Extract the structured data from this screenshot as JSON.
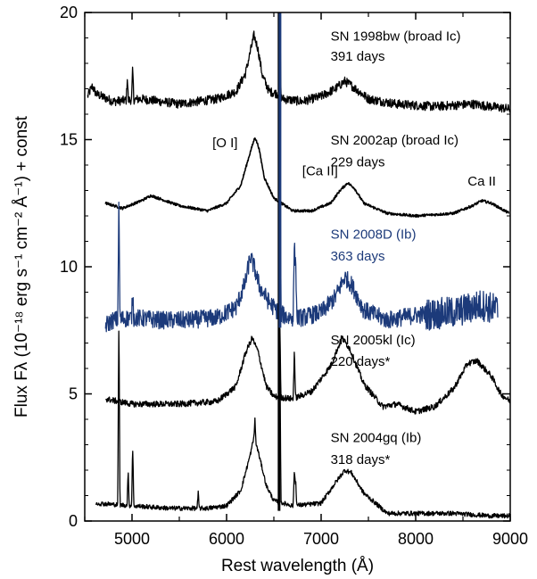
{
  "chart_data": {
    "type": "line",
    "xlabel": "Rest wavelength (Å)",
    "ylabel": "Flux Fλ (10⁻¹⁸ erg s⁻¹ cm⁻² Å⁻¹) + const",
    "xlim": [
      4500,
      9000
    ],
    "ylim": [
      0,
      20
    ],
    "xticks": [
      5000,
      6000,
      7000,
      8000,
      9000
    ],
    "yticks": [
      0,
      5,
      10,
      15,
      20
    ],
    "grid": false,
    "colors": {
      "black": "#000000",
      "blue": "#1c3a7a"
    },
    "series": [
      {
        "name": "SN 1998bw (broad Ic)",
        "color": "#000000",
        "noise": 0.18,
        "x_range": [
          4530,
          9000
        ],
        "points": [
          [
            4530,
            16.7
          ],
          [
            4580,
            17.1
          ],
          [
            4620,
            16.8
          ],
          [
            4800,
            16.5
          ],
          [
            5100,
            16.6
          ],
          [
            5500,
            16.4
          ],
          [
            5900,
            16.6
          ],
          [
            6100,
            16.9
          ],
          [
            6200,
            17.6
          ],
          [
            6260,
            18.6
          ],
          [
            6290,
            19.1
          ],
          [
            6330,
            18.6
          ],
          [
            6380,
            17.5
          ],
          [
            6450,
            16.9
          ],
          [
            6540,
            16.8
          ],
          [
            6600,
            16.6
          ],
          [
            6800,
            16.5
          ],
          [
            7000,
            16.7
          ],
          [
            7150,
            17.0
          ],
          [
            7250,
            17.3
          ],
          [
            7330,
            17.1
          ],
          [
            7500,
            16.6
          ],
          [
            7800,
            16.4
          ],
          [
            8200,
            16.3
          ],
          [
            8600,
            16.4
          ],
          [
            9000,
            16.2
          ]
        ],
        "spikes": [
          [
            4950,
            0.9
          ],
          [
            5007,
            1.2
          ],
          [
            6563,
            4.0
          ]
        ]
      },
      {
        "name": "SN 2002ap (broad Ic)",
        "color": "#000000",
        "noise": 0.05,
        "x_range": [
          4720,
          8990
        ],
        "points": [
          [
            4720,
            12.5
          ],
          [
            4900,
            12.3
          ],
          [
            5100,
            12.6
          ],
          [
            5200,
            12.8
          ],
          [
            5500,
            12.4
          ],
          [
            5800,
            12.2
          ],
          [
            6000,
            12.5
          ],
          [
            6150,
            13.2
          ],
          [
            6250,
            14.5
          ],
          [
            6300,
            15.1
          ],
          [
            6340,
            14.7
          ],
          [
            6400,
            13.5
          ],
          [
            6500,
            12.7
          ],
          [
            6700,
            12.2
          ],
          [
            6900,
            12.2
          ],
          [
            7100,
            12.5
          ],
          [
            7200,
            13.0
          ],
          [
            7280,
            13.3
          ],
          [
            7350,
            13.1
          ],
          [
            7450,
            12.5
          ],
          [
            7700,
            12.1
          ],
          [
            8000,
            12.0
          ],
          [
            8400,
            12.1
          ],
          [
            8600,
            12.4
          ],
          [
            8700,
            12.6
          ],
          [
            8800,
            12.5
          ],
          [
            8990,
            12.1
          ]
        ],
        "spikes": []
      },
      {
        "name": "SN 2008D (Ib)",
        "color": "#1c3a7a",
        "noise": 0.35,
        "x_range": [
          4720,
          8870
        ],
        "points": [
          [
            4720,
            7.7
          ],
          [
            4800,
            7.9
          ],
          [
            5000,
            8.0
          ],
          [
            5300,
            7.9
          ],
          [
            5600,
            7.9
          ],
          [
            5900,
            8.0
          ],
          [
            6100,
            8.4
          ],
          [
            6200,
            9.4
          ],
          [
            6250,
            10.4
          ],
          [
            6290,
            10.0
          ],
          [
            6350,
            9.2
          ],
          [
            6450,
            8.6
          ],
          [
            6550,
            8.2
          ],
          [
            6650,
            8.0
          ],
          [
            6800,
            8.0
          ],
          [
            7000,
            8.2
          ],
          [
            7150,
            8.8
          ],
          [
            7250,
            9.6
          ],
          [
            7320,
            9.3
          ],
          [
            7450,
            8.3
          ],
          [
            7700,
            7.9
          ],
          [
            8000,
            8.1
          ],
          [
            8400,
            8.2
          ],
          [
            8700,
            8.5
          ],
          [
            8870,
            8.3
          ]
        ],
        "spikes": [
          [
            4861,
            4.7
          ],
          [
            5007,
            1.0
          ],
          [
            6563,
            11.0
          ],
          [
            6717,
            3.2
          ],
          [
            6731,
            2.4
          ]
        ]
      },
      {
        "name": "SN 2005kl (Ic)",
        "color": "#000000",
        "noise": 0.12,
        "x_range": [
          4720,
          9000
        ],
        "points": [
          [
            4720,
            4.8
          ],
          [
            5000,
            4.6
          ],
          [
            5500,
            4.6
          ],
          [
            5900,
            4.7
          ],
          [
            6100,
            5.3
          ],
          [
            6200,
            6.6
          ],
          [
            6270,
            7.2
          ],
          [
            6330,
            6.7
          ],
          [
            6420,
            5.3
          ],
          [
            6500,
            4.9
          ],
          [
            6700,
            4.8
          ],
          [
            6900,
            5.1
          ],
          [
            7100,
            6.1
          ],
          [
            7220,
            7.2
          ],
          [
            7300,
            6.8
          ],
          [
            7450,
            5.4
          ],
          [
            7650,
            4.5
          ],
          [
            7800,
            4.6
          ],
          [
            8000,
            4.3
          ],
          [
            8200,
            4.5
          ],
          [
            8400,
            5.2
          ],
          [
            8550,
            6.2
          ],
          [
            8650,
            6.3
          ],
          [
            8800,
            5.7
          ],
          [
            8900,
            5.0
          ],
          [
            9000,
            4.7
          ]
        ],
        "spikes": [
          [
            6563,
            3.0
          ],
          [
            6717,
            2.0
          ]
        ]
      },
      {
        "name": "SN 2004gq (Ib)",
        "color": "#000000",
        "noise": 0.09,
        "x_range": [
          4620,
          9000
        ],
        "points": [
          [
            4620,
            0.7
          ],
          [
            5000,
            0.6
          ],
          [
            5400,
            0.5
          ],
          [
            5800,
            0.5
          ],
          [
            6000,
            0.6
          ],
          [
            6150,
            1.2
          ],
          [
            6250,
            2.6
          ],
          [
            6290,
            3.3
          ],
          [
            6330,
            2.8
          ],
          [
            6420,
            1.4
          ],
          [
            6500,
            0.8
          ],
          [
            6700,
            0.6
          ],
          [
            7000,
            0.7
          ],
          [
            7150,
            1.5
          ],
          [
            7250,
            2.0
          ],
          [
            7320,
            1.9
          ],
          [
            7450,
            1.1
          ],
          [
            7700,
            0.3
          ],
          [
            8000,
            0.3
          ],
          [
            8400,
            0.3
          ],
          [
            8800,
            0.2
          ],
          [
            9000,
            0.2
          ]
        ],
        "spikes": [
          [
            4861,
            7.5
          ],
          [
            4959,
            1.3
          ],
          [
            5007,
            2.4
          ],
          [
            5700,
            0.6
          ],
          [
            6300,
            0.8
          ],
          [
            6563,
            6.7
          ],
          [
            6717,
            1.5
          ],
          [
            6731,
            1.0
          ]
        ]
      }
    ],
    "labels": [
      {
        "text": "SN 1998bw (broad Ic)",
        "x": 7100,
        "y": 18.9,
        "color": "#000000",
        "size": 15
      },
      {
        "text": "391 days",
        "x": 7100,
        "y": 18.1,
        "color": "#000000",
        "size": 15
      },
      {
        "text": "SN 2002ap (broad Ic)",
        "x": 7100,
        "y": 14.8,
        "color": "#000000",
        "size": 15
      },
      {
        "text": "229 days",
        "x": 7100,
        "y": 13.95,
        "color": "#000000",
        "size": 15
      },
      {
        "text": "[O I]",
        "x": 5850,
        "y": 14.7,
        "color": "#000000",
        "size": 15
      },
      {
        "text": "[Ca II]",
        "x": 6800,
        "y": 13.6,
        "color": "#000000",
        "size": 15
      },
      {
        "text": "Ca II",
        "x": 8550,
        "y": 13.2,
        "color": "#000000",
        "size": 15
      },
      {
        "text": "SN 2008D (Ib)",
        "x": 7100,
        "y": 11.1,
        "color": "#1c3a7a",
        "size": 16
      },
      {
        "text": "363 days",
        "x": 7100,
        "y": 10.25,
        "color": "#1c3a7a",
        "size": 16
      },
      {
        "text": "SN 2005kl (Ic)",
        "x": 7100,
        "y": 6.95,
        "color": "#000000",
        "size": 15
      },
      {
        "text": "220 days*",
        "x": 7100,
        "y": 6.1,
        "color": "#000000",
        "size": 15
      },
      {
        "text": "SN 2004gq (Ib)",
        "x": 7100,
        "y": 3.1,
        "color": "#000000",
        "size": 15
      },
      {
        "text": "318 days*",
        "x": 7100,
        "y": 2.25,
        "color": "#000000",
        "size": 15
      }
    ]
  }
}
